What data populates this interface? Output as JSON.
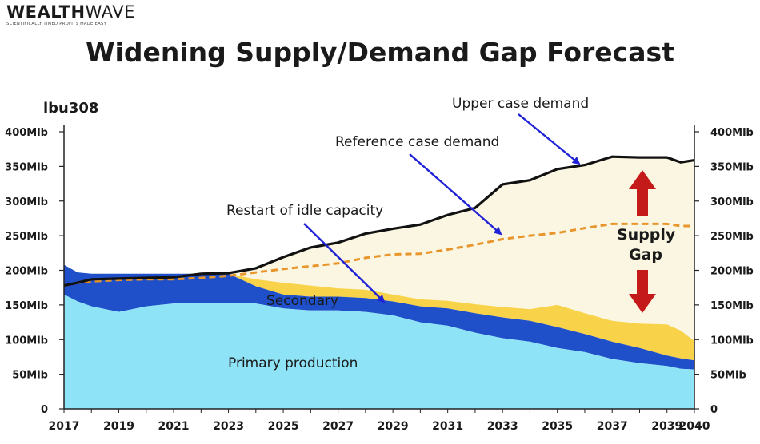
{
  "logo": {
    "part1": "WEALTH",
    "part2": "WAVE",
    "tagline": "SCIENTIFICALLY TIMED PROFITS MADE EASY"
  },
  "colors": {
    "primary": "#8fe3f6",
    "secondary": "#1f4fc9",
    "restart": "#f8d34a",
    "gap": "#fbf6e1",
    "upper_line": "#111111",
    "reference_line": "#e8962c",
    "gap_arrows": "#c41a1a",
    "annotation_arrows": "#1f22d6"
  },
  "chart_data": {
    "type": "area",
    "title": "Widening Supply/Demand Gap Forecast",
    "ylabel": "lbu308",
    "ylim": [
      0,
      400
    ],
    "xlim": [
      2017,
      2040
    ],
    "x_ticks": [
      "2017",
      "2019",
      "2021",
      "2023",
      "2025",
      "2027",
      "2029",
      "2031",
      "2033",
      "2035",
      "2037",
      "2039",
      "2040"
    ],
    "y_ticks": [
      "0",
      "50Mlb",
      "100Mlb",
      "150Mlb",
      "200Mlb",
      "250Mlb",
      "300Mlb",
      "350Mlb",
      "400Mlb"
    ],
    "x": [
      2017,
      2017.5,
      2018,
      2019,
      2020,
      2021,
      2022,
      2023,
      2024,
      2025,
      2026,
      2027,
      2028,
      2029,
      2030,
      2031,
      2032,
      2033,
      2034,
      2035,
      2036,
      2037,
      2038,
      2039,
      2039.5,
      2040
    ],
    "series": [
      {
        "name": "Primary production",
        "values": [
          165,
          155,
          148,
          140,
          148,
          152,
          152,
          152,
          152,
          145,
          142,
          142,
          140,
          135,
          125,
          120,
          110,
          102,
          97,
          88,
          82,
          72,
          66,
          62,
          58,
          57
        ]
      },
      {
        "name": "Secondary",
        "values": [
          43,
          42,
          47,
          55,
          47,
          43,
          43,
          43,
          25,
          20,
          20,
          20,
          20,
          20,
          23,
          25,
          28,
          30,
          30,
          30,
          26,
          25,
          22,
          15,
          15,
          13
        ]
      },
      {
        "name": "Restart of idle capacity",
        "values": [
          0,
          0,
          0,
          0,
          0,
          0,
          0,
          0,
          10,
          17,
          16,
          12,
          12,
          10,
          10,
          11,
          13,
          15,
          17,
          32,
          30,
          30,
          35,
          45,
          40,
          28
        ]
      },
      {
        "name": "Reference case demand",
        "values": [
          178,
          182,
          184,
          186,
          187,
          187,
          189,
          192,
          197,
          202,
          206,
          210,
          218,
          223,
          224,
          230,
          237,
          245,
          250,
          254,
          261,
          267,
          267,
          267,
          264,
          264
        ]
      },
      {
        "name": "Upper case demand",
        "values": [
          178,
          182,
          187,
          188,
          189,
          190,
          195,
          196,
          203,
          219,
          233,
          240,
          253,
          260,
          266,
          280,
          290,
          324,
          330,
          346,
          352,
          364,
          363,
          363,
          356,
          359
        ]
      }
    ],
    "annotations": {
      "upper": "Upper case demand",
      "reference": "Reference case demand",
      "restart": "Restart of idle capacity",
      "secondary": "Secondary",
      "primary": "Primary production",
      "gap_line1": "Supply",
      "gap_line2": "Gap"
    }
  }
}
